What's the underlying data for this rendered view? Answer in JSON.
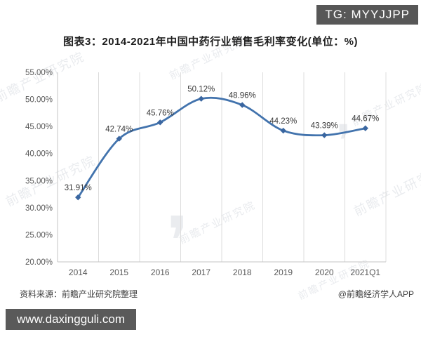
{
  "badges": {
    "tg": "TG: MYYJJPP",
    "site": "www.daxingguli.com"
  },
  "chart_data": {
    "type": "line",
    "title": "图表3：2014-2021年中国中药行业销售毛利率变化(单位：%)",
    "categories": [
      "2014",
      "2015",
      "2016",
      "2017",
      "2018",
      "2019",
      "2020",
      "2021Q1"
    ],
    "values": [
      31.91,
      42.74,
      45.76,
      50.12,
      48.96,
      44.23,
      43.39,
      44.67
    ],
    "data_labels": [
      "31.91%",
      "42.74%",
      "45.76%",
      "50.12%",
      "48.96%",
      "44.23%",
      "43.39%",
      "44.67%"
    ],
    "ylim": [
      20,
      55
    ],
    "ytick_labels": [
      "20.00%",
      "25.00%",
      "30.00%",
      "35.00%",
      "40.00%",
      "45.00%",
      "50.00%",
      "55.00%"
    ],
    "xlabel": "",
    "ylabel": "",
    "grid": "vertical-only",
    "legend": "none",
    "smooth": true,
    "line_color": "#4273ad",
    "marker_color": "#3a66a0",
    "gridline_color": "#dcdcdc",
    "axis_color": "#c6c6c6",
    "tick_text_color": "#595959",
    "label_text_color": "#383838"
  },
  "footer": {
    "source": "资料来源：前瞻产业研究院整理",
    "credit": "@前瞻经济学人APP"
  },
  "watermark": {
    "text": "前瞻产业研究院",
    "logo_glyph": "❜"
  }
}
